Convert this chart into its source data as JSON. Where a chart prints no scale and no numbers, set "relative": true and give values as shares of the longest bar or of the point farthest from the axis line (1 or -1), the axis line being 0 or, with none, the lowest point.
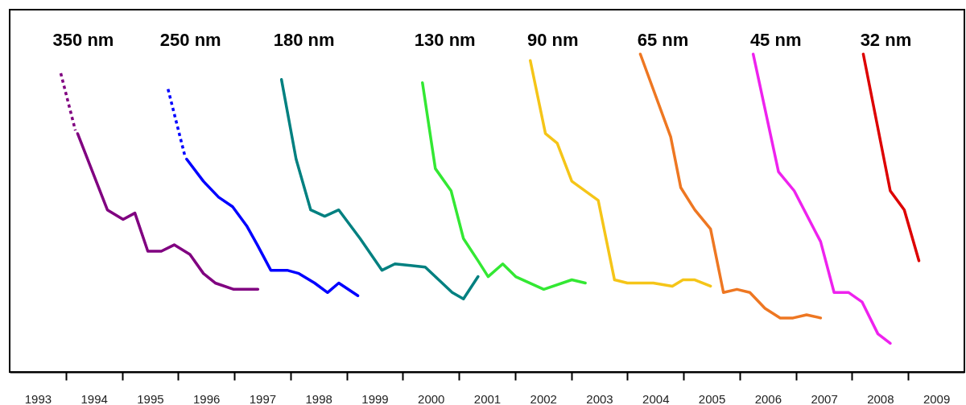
{
  "chart_data": {
    "type": "line",
    "relative": true,
    "grid": false,
    "marker": "none",
    "line_style": "solid",
    "xlim": [
      1993,
      2010
    ],
    "xticks": [
      {
        "value": 1993.5,
        "label": "1993"
      },
      {
        "value": 1994.5,
        "label": "1994"
      },
      {
        "value": 1995.5,
        "label": "1995"
      },
      {
        "value": 1996.5,
        "label": "1996"
      },
      {
        "value": 1997.5,
        "label": "1997"
      },
      {
        "value": 1998.5,
        "label": "1998"
      },
      {
        "value": 1999.5,
        "label": "1999"
      },
      {
        "value": 2000.5,
        "label": "2000"
      },
      {
        "value": 2001.5,
        "label": "2001"
      },
      {
        "value": 2002.5,
        "label": "2002"
      },
      {
        "value": 2003.5,
        "label": "2003"
      },
      {
        "value": 2004.5,
        "label": "2004"
      },
      {
        "value": 2005.5,
        "label": "2005"
      },
      {
        "value": 2006.5,
        "label": "2006"
      },
      {
        "value": 2007.5,
        "label": "2007"
      },
      {
        "value": 2008.5,
        "label": "2008"
      },
      {
        "value": 2009.5,
        "label": "2009"
      },
      {
        "value": 1994,
        "label": null
      },
      {
        "value": 1995,
        "label": null
      },
      {
        "value": 1996,
        "label": null
      },
      {
        "value": 1997,
        "label": null
      },
      {
        "value": 1998,
        "label": null
      },
      {
        "value": 1999,
        "label": null
      },
      {
        "value": 2000,
        "label": null
      },
      {
        "value": 2001,
        "label": null
      },
      {
        "value": 2002,
        "label": null
      },
      {
        "value": 2003,
        "label": null
      },
      {
        "value": 2004,
        "label": null
      },
      {
        "value": 2005,
        "label": null
      },
      {
        "value": 2006,
        "label": null
      },
      {
        "value": 2007,
        "label": null
      },
      {
        "value": 2008,
        "label": null
      },
      {
        "value": 2009,
        "label": null
      }
    ],
    "series": [
      {
        "name": "350 nm",
        "color": "#800080",
        "line_style": "dotted",
        "x": [
          1993.91,
          1994.17
        ],
        "values": [
          0.94,
          0.76
        ]
      },
      {
        "color": "#800080",
        "x": [
          1994.21,
          1994.74,
          1995.02,
          1995.23,
          1995.46,
          1995.7,
          1995.93,
          1996.21,
          1996.45,
          1996.66,
          1996.99,
          1997.42
        ],
        "values": [
          0.75,
          0.51,
          0.48,
          0.5,
          0.38,
          0.38,
          0.4,
          0.37,
          0.31,
          0.28,
          0.26,
          0.26
        ]
      },
      {
        "name": "250 nm",
        "color": "#0000ff",
        "line_style": "dotted",
        "x": [
          1995.82,
          1996.12
        ],
        "values": [
          0.89,
          0.68
        ]
      },
      {
        "color": "#0000ff",
        "x": [
          1996.15,
          1996.45,
          1996.72,
          1996.97,
          1997.22,
          1997.41,
          1997.65,
          1997.94,
          1998.15,
          1998.43,
          1998.66,
          1998.86,
          1999.2
        ],
        "values": [
          0.67,
          0.6,
          0.55,
          0.52,
          0.46,
          0.4,
          0.32,
          0.32,
          0.31,
          0.28,
          0.25,
          0.28,
          0.24
        ]
      },
      {
        "name": "180 nm",
        "color": "#008080",
        "x": [
          1997.84,
          1998.1,
          1998.36,
          1998.61,
          1998.86,
          1999.24,
          1999.63,
          1999.86,
          2000.4,
          2000.88,
          2001.08,
          2001.34
        ],
        "values": [
          0.92,
          0.67,
          0.51,
          0.49,
          0.51,
          0.42,
          0.32,
          0.34,
          0.33,
          0.25,
          0.23,
          0.3
        ]
      },
      {
        "name": "130 nm",
        "color": "#33e833",
        "x": [
          2000.35,
          2000.58,
          2000.86,
          2001.08,
          2001.34,
          2001.52,
          2001.78,
          2002.01,
          2002.51,
          2003.01,
          2003.25
        ],
        "values": [
          0.91,
          0.64,
          0.57,
          0.42,
          0.35,
          0.3,
          0.34,
          0.3,
          0.26,
          0.29,
          0.28
        ]
      },
      {
        "name": "90 nm",
        "color": "#f5c518",
        "x": [
          2002.27,
          2002.54,
          2002.75,
          2003.01,
          2003.48,
          2003.77,
          2004.0,
          2004.46,
          2004.8,
          2004.99,
          2005.2,
          2005.48
        ],
        "values": [
          0.98,
          0.75,
          0.72,
          0.6,
          0.54,
          0.29,
          0.28,
          0.28,
          0.27,
          0.29,
          0.29,
          0.27
        ]
      },
      {
        "name": "65 nm",
        "color": "#ee7722",
        "x": [
          2004.23,
          2004.77,
          2004.95,
          2005.2,
          2005.48,
          2005.71,
          2005.95,
          2006.18,
          2006.45,
          2006.72,
          2006.95,
          2007.19,
          2007.44
        ],
        "values": [
          1,
          0.74,
          0.58,
          0.51,
          0.45,
          0.25,
          0.26,
          0.25,
          0.2,
          0.17,
          0.17,
          0.18,
          0.17
        ]
      },
      {
        "name": "45 nm",
        "color": "#ee22ee",
        "x": [
          2006.24,
          2006.69,
          2006.97,
          2007.44,
          2007.68,
          2007.94,
          2008.18,
          2008.46,
          2008.68
        ],
        "values": [
          1,
          0.63,
          0.57,
          0.41,
          0.25,
          0.25,
          0.22,
          0.12,
          0.09
        ]
      },
      {
        "name": "32 nm",
        "color": "#dd0000",
        "x": [
          2008.2,
          2008.68,
          2008.93,
          2009.19
        ],
        "values": [
          1,
          0.57,
          0.51,
          0.35
        ]
      }
    ]
  }
}
